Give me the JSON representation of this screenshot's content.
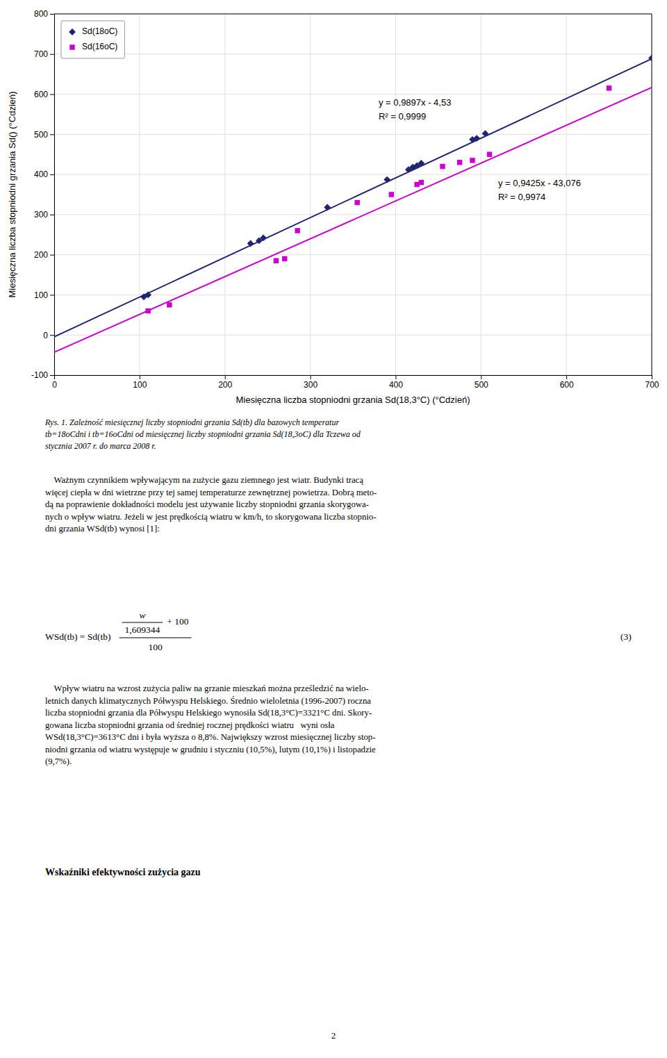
{
  "chart_data": {
    "type": "scatter",
    "xlabel": "Miesięczna liczba stopniodni grzania Sd(18,3°C) (°Cdzień)",
    "ylabel": "Miesięczna liczba stopniodni grzania Sd() (°Cdzień)",
    "series": [
      {
        "name": "Sd(18oC)",
        "color": "#1F2570",
        "marker": "diamond",
        "x": [
          105,
          110,
          230,
          240,
          245,
          320,
          390,
          415,
          420,
          425,
          430,
          490,
          495,
          505,
          700
        ],
        "values": [
          95,
          100,
          228,
          235,
          242,
          318,
          387,
          412,
          418,
          422,
          428,
          487,
          490,
          502,
          690
        ]
      },
      {
        "name": "Sd(16oC)",
        "color": "#CC00CC",
        "marker": "square",
        "x": [
          110,
          135,
          260,
          270,
          285,
          355,
          395,
          425,
          430,
          455,
          475,
          490,
          510,
          650
        ],
        "values": [
          60,
          75,
          185,
          190,
          260,
          330,
          350,
          375,
          380,
          420,
          430,
          435,
          450,
          615
        ]
      },
      {
        "type": "line",
        "color": "#1F2570",
        "x": [
          0,
          700
        ],
        "values": [
          -4.53,
          688.26
        ]
      },
      {
        "type": "line",
        "color": "#CC00CC",
        "x": [
          0,
          700
        ],
        "values": [
          -43.076,
          616.674
        ]
      }
    ],
    "annotations": [
      "y = 0,9897x - 4,53\nR² = 0,9999",
      "y = 0,9425x - 43,076\nR² = 0,9974"
    ],
    "xlim": [
      0,
      700
    ],
    "ylim": [
      -100,
      800
    ],
    "xticks": [
      0,
      100,
      200,
      300,
      400,
      500,
      600,
      700
    ],
    "yticks": [
      -100,
      0,
      100,
      200,
      300,
      400,
      500,
      600,
      700,
      800
    ],
    "grid": true,
    "legend": "upper left"
  },
  "page": {
    "caption": "Rys. 1. Zależność miesięcznej liczby stopniodni grzania Sd(tb) dla bazowych temperatur\ntb=18oCdni i tb=16oCdni od miesięcznej liczby stopniodni grzania Sd(18,3oC) dla Tczewa od\nstycznia 2007 r. do marca 2008 r.",
    "paragraphs": [
      "    Ważnym czynnikiem wpływającym na zużycie gazu ziemnego jest wiatr. Budynki tracą\nwięcej ciepła w dni wietrzne przy tej samej temperaturze zewnętrznej powietrza. Dobrą meto-\ndą na poprawienie dokładności modelu jest używanie liczby stopniodni grzania skorygowa-\nnych o wpływ wiatru. Jeżeli w jest prędkością wiatru w km/h, to skorygowana liczba stopnio-\ndni grzania WSd(tb) wynosi [1]:",
      "    Wpływ wiatru na wzrost zużycia paliw na grzanie mieszkań można prześledzić na wielo-\nletnich danych klimatycznych Półwyspu Helskiego. Średnio wieloletnia (1996-2007) roczna\nliczba stopniodni grzania dla Półwyspu Helskiego wynosiła Sd(18,3°C)=3321°C dni. Skory-\ngowana liczba stopniodni grzania od średniej rocznej prędkości wiatru   wyni osła\nWSd(18,3°C)=3613°C dni i była wyższa o 8,8%. Największy wzrost miesięcznej liczby stop-\nniodni grzania od wiatru występuje w grudniu i styczniu (10,5%), lutym (10,1%) i listopadzie\n(9,7%)."
    ],
    "formula": {
      "lhs": "WSd(tb) = Sd(tb)",
      "inner_numerator": "w",
      "inner_denominator": "1,609344",
      "addend": "+ 100",
      "denominator": "100",
      "number": "(3)"
    },
    "heading": "Wskaźniki efektywności zużycia gazu",
    "page_number": "2"
  }
}
